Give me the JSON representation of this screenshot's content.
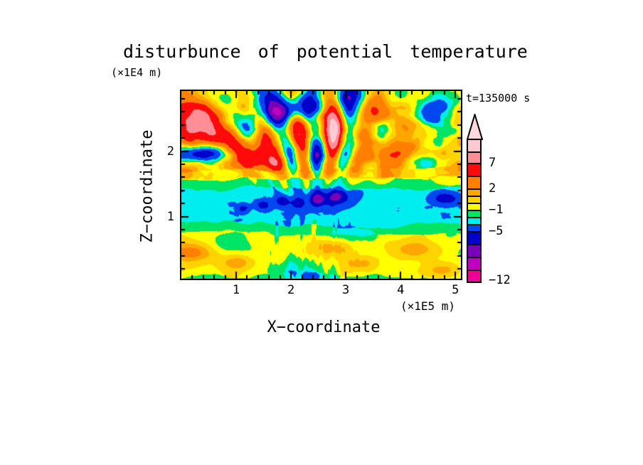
{
  "title": "disturbunce of potential temperature",
  "y_axis_unit": "(×1E4 m)",
  "time_label": "t=135000 s",
  "x_axis": {
    "label": "X−coordinate",
    "unit": "(×1E5 m)",
    "tick_values": [
      1,
      2,
      3,
      4,
      5
    ],
    "tick_labels": [
      "1",
      "2",
      "3",
      "4",
      "5"
    ],
    "minor_tick_step": 0.2,
    "range": [
      0,
      5.1
    ]
  },
  "z_axis": {
    "label": "Z−coordinate",
    "tick_values": [
      1,
      2
    ],
    "tick_labels": [
      "1",
      "2"
    ],
    "minor_tick_step": 0.2,
    "range": [
      0.05,
      2.92
    ]
  },
  "colorbar": {
    "tip_color": "#FFD9DE",
    "segments": [
      {
        "color": "#FFC9D2",
        "height": 18
      },
      {
        "color": "#FF8E96",
        "height": 16
      },
      {
        "color": "#FF0A0A",
        "height": 18
      },
      {
        "color": "#FF7F00",
        "height": 18
      },
      {
        "color": "#FFA600",
        "height": 10
      },
      {
        "color": "#FFD300",
        "height": 10
      },
      {
        "color": "#FFFF00",
        "height": 10
      },
      {
        "color": "#00E465",
        "height": 10
      },
      {
        "color": "#00EDF0",
        "height": 10
      },
      {
        "color": "#0047F0",
        "height": 10
      },
      {
        "color": "#0000C8",
        "height": 18
      },
      {
        "color": "#7A00B4",
        "height": 18
      },
      {
        "color": "#BE00BE",
        "height": 18
      },
      {
        "color": "#EE0096",
        "height": 15
      }
    ],
    "labels": [
      {
        "text": "7",
        "after_segment": 2
      },
      {
        "text": "2",
        "after_segment": 4
      },
      {
        "text": "−1",
        "after_segment": 7
      },
      {
        "text": "−5",
        "after_segment": 10
      },
      {
        "text": "−12",
        "after_segment": 14
      }
    ]
  },
  "chart_data": {
    "type": "heatmap",
    "subtype": "filled-contour",
    "title": "disturbunce of potential temperature",
    "xlabel": "X−coordinate (×1E5 m)",
    "ylabel": "Z−coordinate (×1E4 m)",
    "time": "t=135000 s",
    "x_range": [
      0,
      5.1
    ],
    "z_range": [
      0.05,
      2.92
    ],
    "levels": [
      13,
      10,
      7,
      4,
      2,
      1,
      0,
      -1,
      -2,
      -3,
      -5,
      -7,
      -9,
      -12
    ],
    "colors": [
      "#FFC9D2",
      "#FF8E96",
      "#FF0A0A",
      "#FF7F00",
      "#FFA600",
      "#FFD300",
      "#FFFF00",
      "#00E465",
      "#00EDF0",
      "#0047F0",
      "#0000C8",
      "#7A00B4",
      "#BE00BE",
      "#EE0096"
    ],
    "field_description": "Turbulent disturbance field: yellow lower layer (z<0.8) with orange blobs and green patches, quiet cyan layer (0.9<z<1.4) with dark blue spots, green transition strips, and a strongly turbulent upper layer (z>1.6) of yellow/orange/red and deep-blue eddies with wave beams fanning out from x≈2.35.",
    "field": {
      "bands": [
        {
          "z_max": 0.1,
          "base": -1.4,
          "amp": 0.8
        },
        {
          "z_max": 0.76,
          "base": -0.45,
          "amp": 1.6
        },
        {
          "z_max": 0.9,
          "base": -1.5,
          "amp": 0.55
        },
        {
          "z_max": 1.43,
          "base": -2.5,
          "amp": 0.9
        },
        {
          "z_max": 1.58,
          "base": -1.5,
          "amp": 0.7
        },
        {
          "z_max": 1.73,
          "base": -0.2,
          "amp": 2.0
        },
        {
          "z_max": 9.99,
          "base": 0.8,
          "amp": 7.0
        }
      ],
      "rays": {
        "cx": 2.35,
        "cz": 0.15,
        "count": 22,
        "amp": 5.0,
        "phase": 1.0,
        "r_center": 2.05,
        "r_width": 1.15,
        "theta_sigma": 0.4
      },
      "mixing": {
        "cx": 2.35,
        "amp": 2.0,
        "sigma2": 0.5
      },
      "spot_noise": {
        "z_center": 1.22,
        "amp": -5.0,
        "threshold": 0.66
      },
      "blobs": [
        {
          "x": 0.42,
          "z": 2.45,
          "rx": 0.3,
          "rz": 0.2,
          "a": 6.0
        },
        {
          "x": 0.12,
          "z": 2.3,
          "rx": 0.25,
          "rz": 0.28,
          "a": 4.5
        },
        {
          "x": 0.35,
          "z": 1.97,
          "rx": 0.45,
          "rz": 0.1,
          "a": -6.5
        },
        {
          "x": 1.05,
          "z": 2.02,
          "rx": 0.22,
          "rz": 0.1,
          "a": 3.2
        },
        {
          "x": 1.42,
          "z": 1.92,
          "rx": 0.22,
          "rz": 0.1,
          "a": 3.4
        },
        {
          "x": 1.8,
          "z": 1.82,
          "rx": 0.25,
          "rz": 0.1,
          "a": 2.8
        },
        {
          "x": 1.72,
          "z": 2.62,
          "rx": 0.38,
          "rz": 0.16,
          "a": -7.5
        },
        {
          "x": 1.25,
          "z": 2.4,
          "rx": 0.18,
          "rz": 0.14,
          "a": -6.0
        },
        {
          "x": 2.2,
          "z": 2.7,
          "rx": 0.22,
          "rz": 0.14,
          "a": -6.5
        },
        {
          "x": 2.98,
          "z": 2.78,
          "rx": 0.16,
          "rz": 0.18,
          "a": -6.5
        },
        {
          "x": 3.6,
          "z": 2.35,
          "rx": 0.2,
          "rz": 0.12,
          "a": -5.0
        },
        {
          "x": 4.55,
          "z": 2.55,
          "rx": 0.26,
          "rz": 0.18,
          "a": -8.0
        },
        {
          "x": 4.05,
          "z": 2.25,
          "rx": 0.45,
          "rz": 0.22,
          "a": 3.0
        },
        {
          "x": 4.95,
          "z": 1.9,
          "rx": 0.3,
          "rz": 0.25,
          "a": 3.0
        },
        {
          "x": 3.35,
          "z": 1.72,
          "rx": 0.35,
          "rz": 0.14,
          "a": 2.2
        },
        {
          "x": 2.78,
          "z": 2.3,
          "rx": 0.1,
          "rz": 0.28,
          "a": 5.5
        },
        {
          "x": 1.5,
          "z": 1.18,
          "rx": 0.1,
          "rz": 0.06,
          "a": -3.8
        },
        {
          "x": 1.85,
          "z": 1.24,
          "rx": 0.1,
          "rz": 0.06,
          "a": -3.8
        },
        {
          "x": 2.12,
          "z": 1.2,
          "rx": 0.09,
          "rz": 0.06,
          "a": -3.6
        },
        {
          "x": 2.48,
          "z": 1.26,
          "rx": 0.13,
          "rz": 0.08,
          "a": -4.2
        },
        {
          "x": 2.85,
          "z": 1.3,
          "rx": 0.18,
          "rz": 0.09,
          "a": -4.6
        },
        {
          "x": 4.82,
          "z": 1.28,
          "rx": 0.2,
          "rz": 0.08,
          "a": -4.2
        },
        {
          "x": 1.12,
          "z": 1.12,
          "rx": 0.08,
          "rz": 0.05,
          "a": -3.2
        },
        {
          "x": 0.15,
          "z": 0.45,
          "rx": 0.25,
          "rz": 0.1,
          "a": 2.6
        },
        {
          "x": 1.05,
          "z": 0.3,
          "rx": 0.22,
          "rz": 0.09,
          "a": 2.2
        },
        {
          "x": 2.7,
          "z": 0.52,
          "rx": 0.3,
          "rz": 0.1,
          "a": 2.4
        },
        {
          "x": 3.25,
          "z": 0.28,
          "rx": 0.22,
          "rz": 0.09,
          "a": 2.3
        },
        {
          "x": 4.28,
          "z": 0.5,
          "rx": 0.4,
          "rz": 0.12,
          "a": 2.5
        },
        {
          "x": 4.78,
          "z": 0.18,
          "rx": 0.26,
          "rz": 0.09,
          "a": 2.5
        },
        {
          "x": 0.85,
          "z": 0.6,
          "rx": 0.25,
          "rz": 0.1,
          "a": -1.3
        },
        {
          "x": 2.02,
          "z": 0.22,
          "rx": 0.25,
          "rz": 0.12,
          "a": -1.4
        },
        {
          "x": 3.05,
          "z": 0.72,
          "rx": 0.35,
          "rz": 0.09,
          "a": -1.2
        },
        {
          "x": 2.35,
          "z": 0.08,
          "rx": 0.15,
          "rz": 0.06,
          "a": -2.2
        }
      ]
    }
  }
}
